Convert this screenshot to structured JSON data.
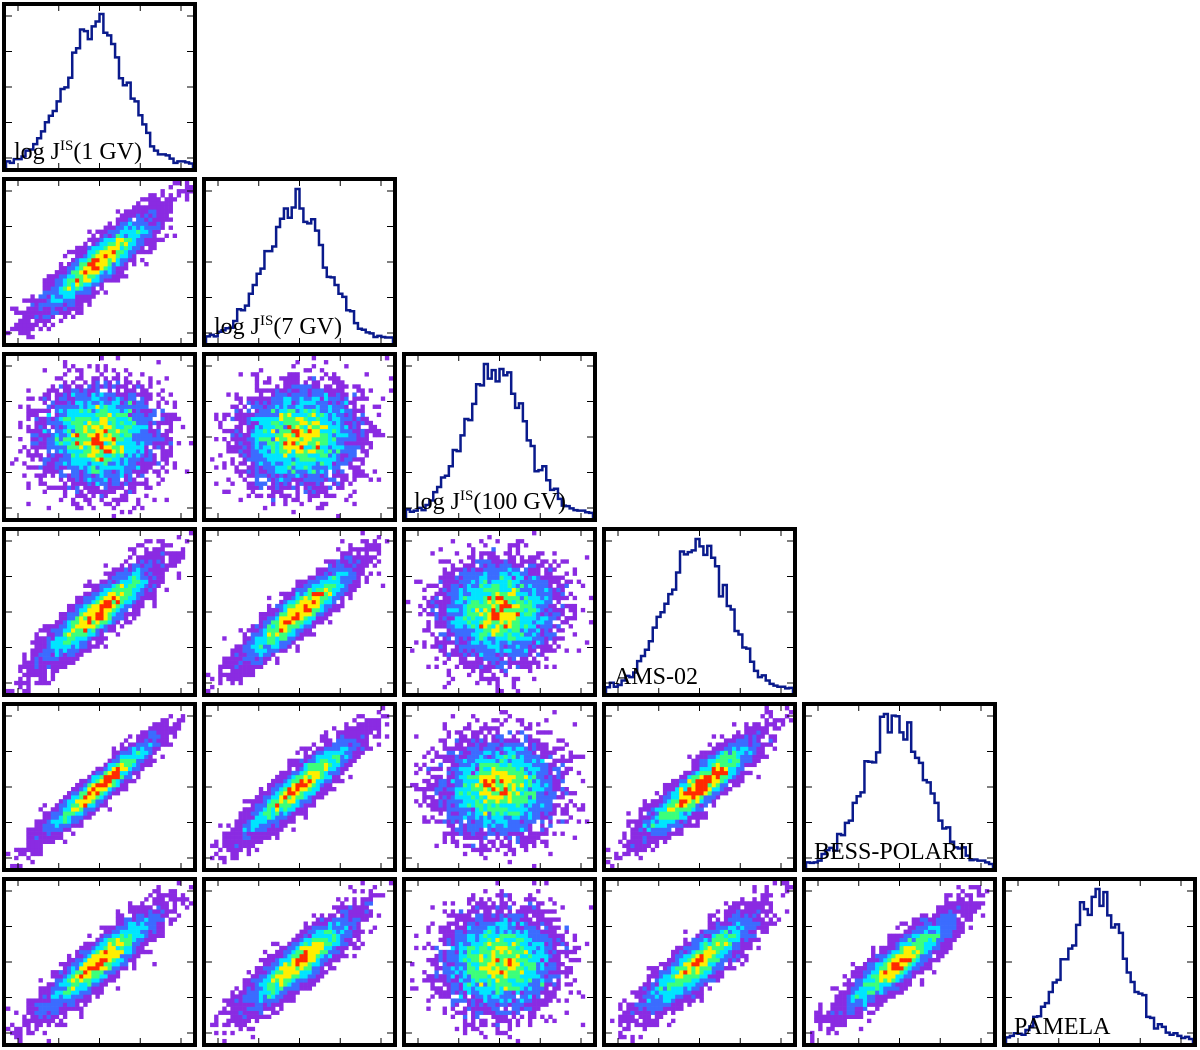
{
  "chart_data": {
    "type": "corner",
    "parameters": [
      {
        "key": "logJ1",
        "label_base": "log J",
        "label_sup": "IS",
        "label_arg": "(1 GV)"
      },
      {
        "key": "logJ7",
        "label_base": "log J",
        "label_sup": "IS",
        "label_arg": "(7 GV)"
      },
      {
        "key": "logJ100",
        "label_base": "log J",
        "label_sup": "IS",
        "label_arg": "(100 GV)"
      },
      {
        "key": "ams02",
        "label_base": "AMS-02",
        "label_sup": "",
        "label_arg": ""
      },
      {
        "key": "besspolarii",
        "label_base": "BESS-POLARII",
        "label_sup": "",
        "label_arg": ""
      },
      {
        "key": "pamela",
        "label_base": "PAMELA",
        "label_sup": "",
        "label_arg": ""
      }
    ],
    "correlations": [
      [
        1.0,
        0.9,
        0.03,
        0.88,
        0.95,
        0.9
      ],
      [
        0.9,
        1.0,
        0.05,
        0.9,
        0.9,
        0.88
      ],
      [
        0.03,
        0.05,
        1.0,
        0.04,
        0.03,
        0.04
      ],
      [
        0.88,
        0.9,
        0.04,
        1.0,
        0.9,
        0.88
      ],
      [
        0.95,
        0.9,
        0.03,
        0.9,
        1.0,
        0.9
      ],
      [
        0.9,
        0.88,
        0.04,
        0.88,
        0.9,
        1.0
      ]
    ],
    "histogram_color": "#0a1a8c",
    "density_colormap": [
      "#8a2be2",
      "#3b6cff",
      "#00e5ff",
      "#3cff7a",
      "#ffee00",
      "#ff2a00"
    ],
    "grid": false
  }
}
